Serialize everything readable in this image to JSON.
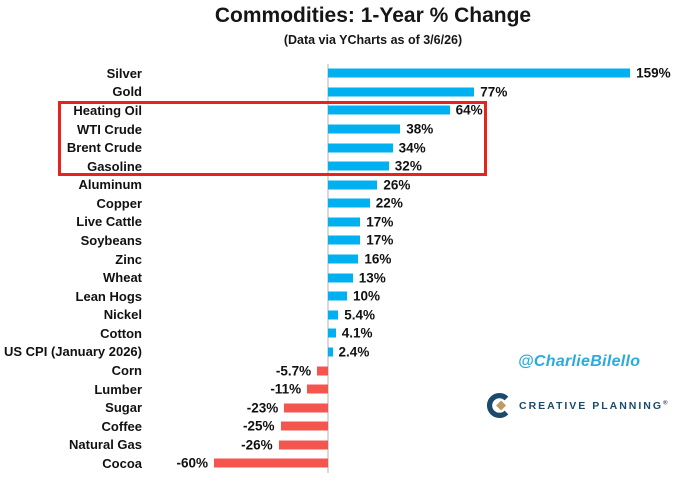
{
  "page": {
    "title": "Commodities: 1-Year % Change",
    "subtitle": "(Data via YCharts as of 3/6/26)"
  },
  "chart_data": {
    "type": "bar",
    "orientation": "horizontal",
    "title": "Commodities: 1-Year % Change",
    "subtitle": "(Data via YCharts as of 3/6/26)",
    "categories": [
      "Silver",
      "Gold",
      "Heating Oil",
      "WTI Crude",
      "Brent Crude",
      "Gasoline",
      "Aluminum",
      "Copper",
      "Live Cattle",
      "Soybeans",
      "Zinc",
      "Wheat",
      "Lean Hogs",
      "Nickel",
      "Cotton",
      "US CPI (January 2026)",
      "Corn",
      "Lumber",
      "Sugar",
      "Coffee",
      "Natural Gas",
      "Cocoa"
    ],
    "values": [
      159,
      77,
      64,
      38,
      34,
      32,
      26,
      22,
      17,
      17,
      16,
      13,
      10,
      5.4,
      4.1,
      2.4,
      -5.7,
      -11,
      -23,
      -25,
      -26,
      -60
    ],
    "value_labels": [
      "159%",
      "77%",
      "64%",
      "38%",
      "34%",
      "32%",
      "26%",
      "22%",
      "17%",
      "17%",
      "16%",
      "13%",
      "10%",
      "5.4%",
      "4.1%",
      "2.4%",
      "-5.7%",
      "-11%",
      "-23%",
      "-25%",
      "-26%",
      "-60%"
    ],
    "xlabel": "",
    "ylabel": "",
    "xlim": [
      -75,
      185
    ],
    "grid": false,
    "legend": false,
    "zero_baseline": true,
    "positive_color": "#00b0f0",
    "negative_color": "#f4564f",
    "axis_line_color": "#d9d9d9",
    "highlight": {
      "categories": [
        "Heating Oil",
        "WTI Crude",
        "Brent Crude",
        "Gasoline"
      ],
      "box_color": "#e8231e"
    }
  },
  "watermark": {
    "handle": "@CharlieBilello",
    "color": "#29abe2"
  },
  "branding": {
    "name": "CREATIVE PLANNING",
    "registered_mark": "®",
    "navy": "#1c4a6b",
    "gold": "#bc9c61"
  }
}
